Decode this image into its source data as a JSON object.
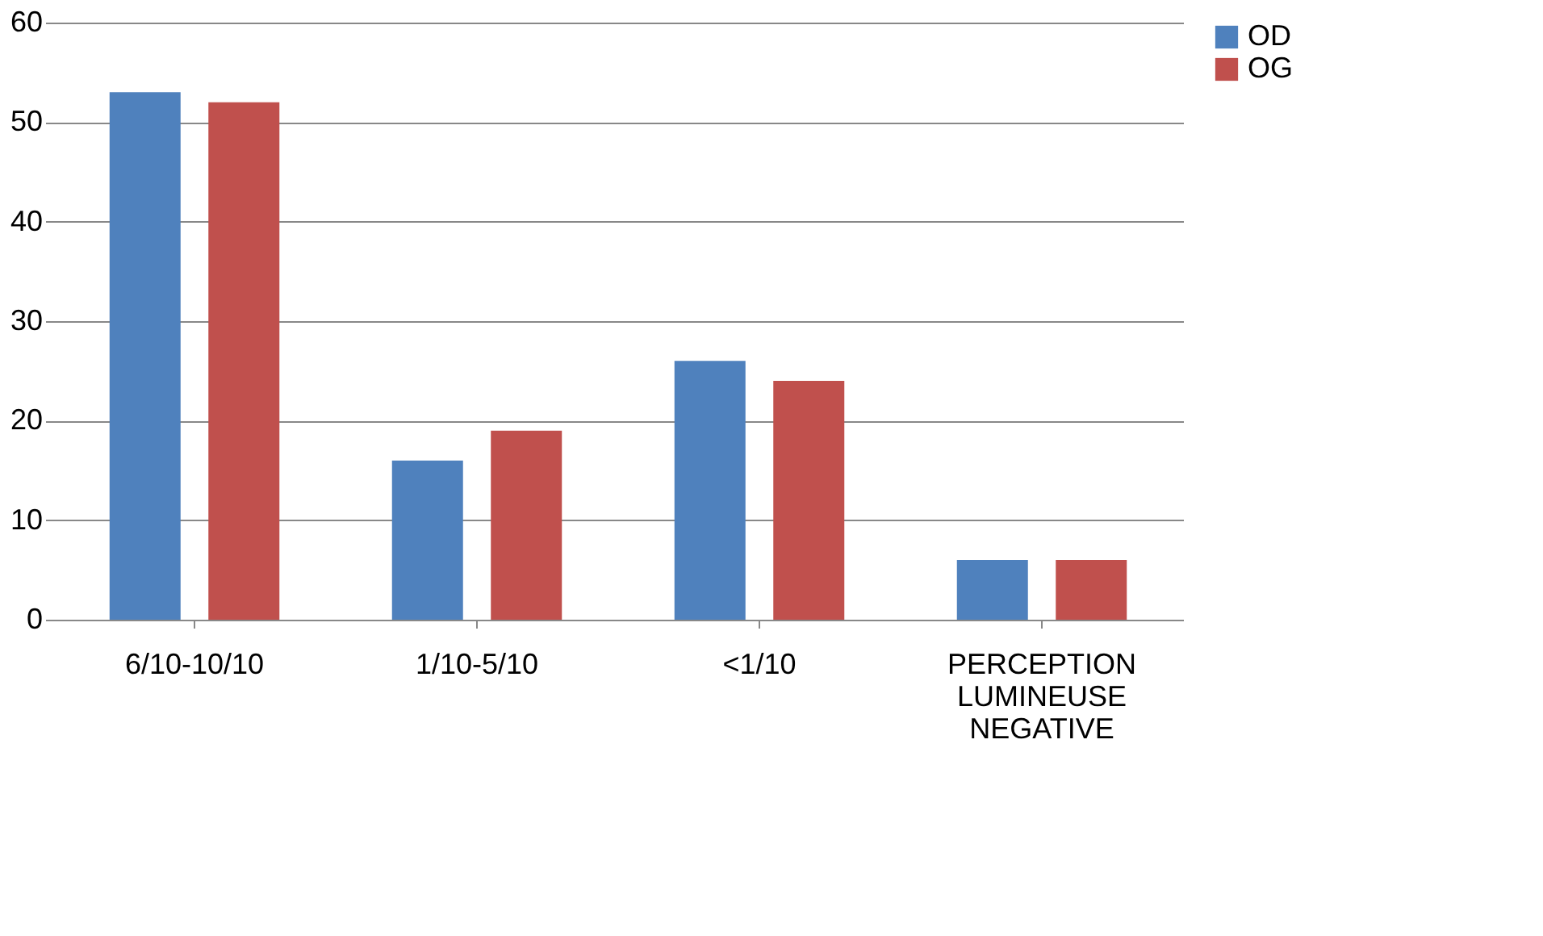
{
  "chart_data": {
    "type": "bar",
    "categories": [
      "6/10-10/10",
      "1/10-5/10",
      "<1/10",
      "PERCEPTION LUMINEUSE NEGATIVE"
    ],
    "series": [
      {
        "name": "OD",
        "color": "#4f81bd",
        "values": [
          53,
          16,
          26,
          6
        ]
      },
      {
        "name": "OG",
        "color": "#c0504d",
        "values": [
          52,
          19,
          24,
          6
        ]
      }
    ],
    "ylim": [
      0,
      60
    ],
    "yticks": [
      0,
      10,
      20,
      30,
      40,
      50,
      60
    ],
    "grid": "y",
    "legend": "right"
  }
}
